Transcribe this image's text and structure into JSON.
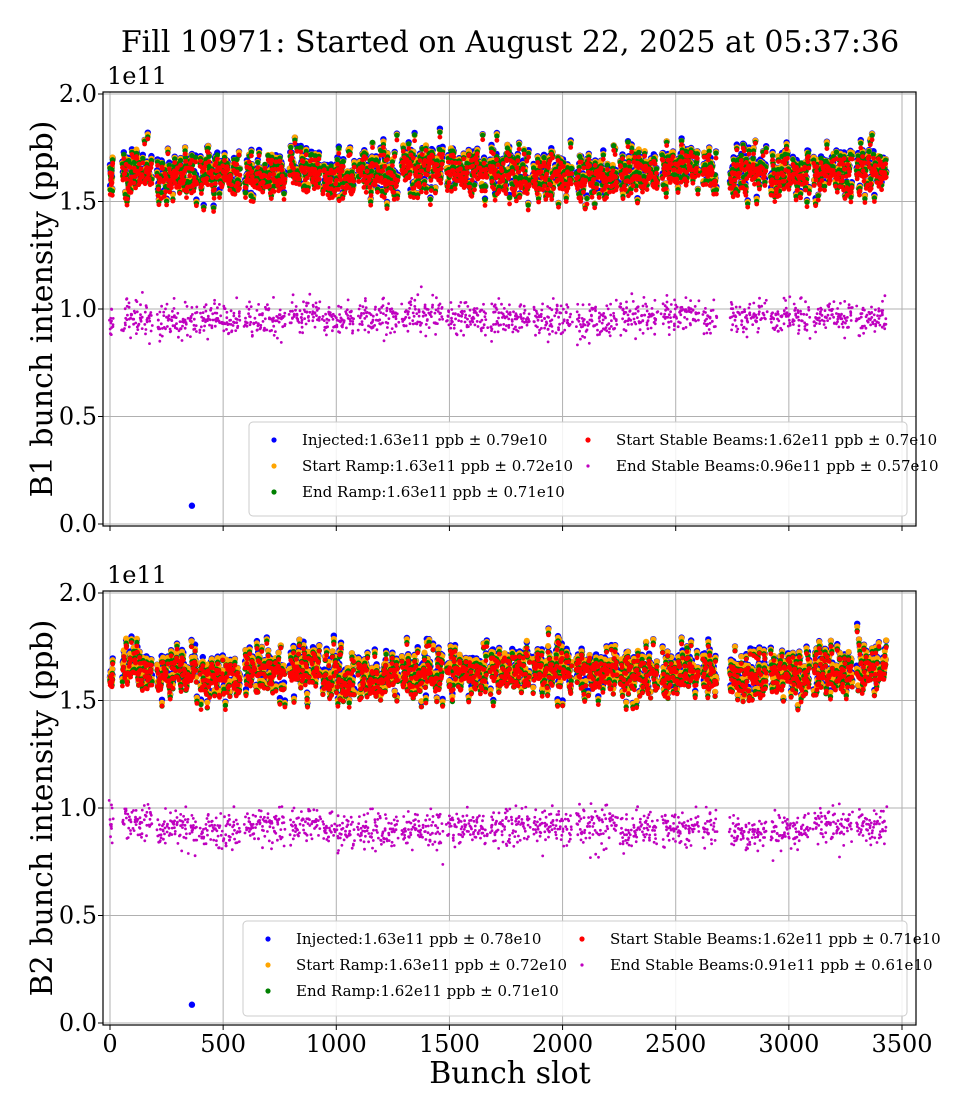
{
  "title": "Fill 10971: Started on August 22, 2025 at 05:37:36",
  "chart_data": [
    {
      "type": "scatter",
      "ylabel": "B1 bunch intensity (ppb)",
      "xlabel": "",
      "offset_label": "1e11",
      "xlim": [
        -30,
        3560
      ],
      "ylim": [
        0,
        2.0
      ],
      "xticks": [
        0,
        500,
        1000,
        1500,
        2000,
        2500,
        3000,
        3500
      ],
      "yticks": [
        "0.0",
        "0.5",
        "1.0",
        "1.5",
        "2.0"
      ],
      "grid": true,
      "legend_position": "lower-right",
      "series": [
        {
          "name": "Injected",
          "legend": "Injected:1.63e11 ppb ± 0.79e10",
          "mean": 1.63,
          "std": 0.079,
          "color": "#0000ff"
        },
        {
          "name": "Start Ramp",
          "legend": "Start Ramp:1.63e11 ppb ± 0.72e10",
          "mean": 1.63,
          "std": 0.072,
          "color": "#ffa500"
        },
        {
          "name": "End Ramp",
          "legend": "End Ramp:1.63e11 ppb ± 0.71e10",
          "mean": 1.63,
          "std": 0.071,
          "color": "#008000"
        },
        {
          "name": "Start Stable Beams",
          "legend": "Start Stable Beams:1.62e11 ppb ± 0.7e10",
          "mean": 1.62,
          "std": 0.07,
          "color": "#ff0000"
        },
        {
          "name": "End Stable Beams",
          "legend": "End Stable Beams:0.96e11 ppb ± 0.57e10",
          "mean": 0.96,
          "std": 0.057,
          "color": "#bf00bf"
        }
      ],
      "outliers": [
        {
          "series": "Injected",
          "x": 362,
          "y": 0.085
        }
      ]
    },
    {
      "type": "scatter",
      "ylabel": "B2 bunch intensity (ppb)",
      "xlabel": "Bunch slot",
      "offset_label": "1e11",
      "xlim": [
        -30,
        3560
      ],
      "ylim": [
        0,
        2.0
      ],
      "xticks": [
        0,
        500,
        1000,
        1500,
        2000,
        2500,
        3000,
        3500
      ],
      "yticks": [
        "0.0",
        "0.5",
        "1.0",
        "1.5",
        "2.0"
      ],
      "grid": true,
      "legend_position": "lower-right",
      "series": [
        {
          "name": "Injected",
          "legend": "Injected:1.63e11 ppb ± 0.78e10",
          "mean": 1.63,
          "std": 0.078,
          "color": "#0000ff"
        },
        {
          "name": "Start Ramp",
          "legend": "Start Ramp:1.63e11 ppb ± 0.72e10",
          "mean": 1.63,
          "std": 0.072,
          "color": "#ffa500"
        },
        {
          "name": "End Ramp",
          "legend": "End Ramp:1.62e11 ppb ± 0.71e10",
          "mean": 1.62,
          "std": 0.071,
          "color": "#008000"
        },
        {
          "name": "Start Stable Beams",
          "legend": "Start Stable Beams:1.62e11 ppb ± 0.71e10",
          "mean": 1.62,
          "std": 0.071,
          "color": "#ff0000"
        },
        {
          "name": "End Stable Beams",
          "legend": "End Stable Beams:0.91e11 ppb ± 0.61e10",
          "mean": 0.91,
          "std": 0.061,
          "color": "#bf00bf"
        }
      ],
      "outliers": [
        {
          "series": "Injected",
          "x": 362,
          "y": 0.085
        }
      ]
    }
  ],
  "filling_trains": [
    [
      0,
      12
    ],
    [
      55,
      186
    ],
    [
      208,
      384
    ],
    [
      398,
      574
    ],
    [
      597,
      773
    ],
    [
      795,
      928
    ],
    [
      941,
      1083
    ],
    [
      1096,
      1273
    ],
    [
      1290,
      1471
    ],
    [
      1489,
      1666
    ],
    [
      1680,
      1855
    ],
    [
      1870,
      2040
    ],
    [
      2060,
      2240
    ],
    [
      2255,
      2420
    ],
    [
      2440,
      2600
    ],
    [
      2620,
      2680
    ],
    [
      2740,
      2900
    ],
    [
      2920,
      3090
    ],
    [
      3110,
      3280
    ],
    [
      3300,
      3430
    ]
  ]
}
